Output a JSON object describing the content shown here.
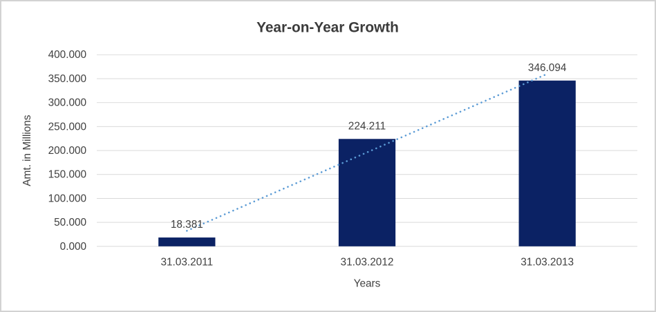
{
  "chart_data": {
    "type": "bar",
    "title": "Year-on-Year Growth",
    "xlabel": "Years",
    "ylabel": "Amt. in Millions",
    "categories": [
      "31.03.2011",
      "31.03.2012",
      "31.03.2013"
    ],
    "values": [
      18.381,
      224.211,
      346.094
    ],
    "data_labels": [
      "18.381",
      "224.211",
      "346.094"
    ],
    "ylim": [
      0,
      400
    ],
    "ytick_interval": 50,
    "ytick_labels": [
      "0.000",
      "50.000",
      "100.000",
      "150.000",
      "200.000",
      "250.000",
      "300.000",
      "350.000",
      "400.000"
    ],
    "grid": true,
    "legend": "none",
    "trendline": {
      "type": "linear",
      "style": "dotted",
      "color": "#5B9BD5"
    },
    "colors": {
      "bar": "#0B2264",
      "gridline": "#D9D9D9",
      "axis_text": "#404040",
      "title_text": "#3B3B3B",
      "frame_border": "#D2D2D2",
      "background": "#FFFFFF"
    }
  }
}
